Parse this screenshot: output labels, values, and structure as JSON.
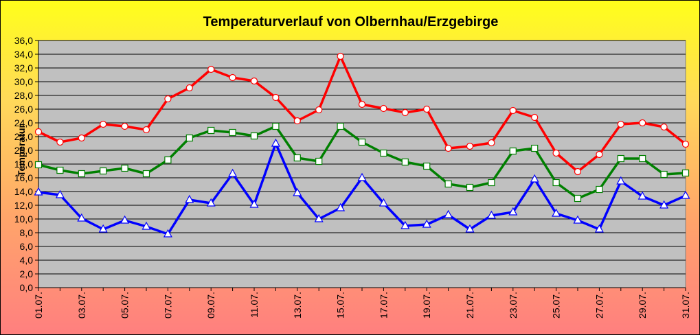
{
  "chart_data": {
    "type": "line",
    "title": "Temperaturverlauf von Olbernhau/Erzgebirge",
    "ylabel": "Temperatur",
    "xlabel": "",
    "ylim": [
      0,
      36
    ],
    "y_step": 2,
    "y_decimal_separator": ",",
    "grid": true,
    "legend": "none",
    "plot_background": "#c0c0c0",
    "categories": [
      "01.07.",
      "02.07.",
      "03.07.",
      "04.07.",
      "05.07.",
      "06.07.",
      "07.07.",
      "08.07.",
      "09.07.",
      "10.07.",
      "11.07.",
      "12.07.",
      "13.07.",
      "14.07.",
      "15.07.",
      "16.07.",
      "17.07.",
      "18.07.",
      "19.07.",
      "20.07.",
      "21.07.",
      "22.07.",
      "23.07.",
      "24.07.",
      "25.07.",
      "26.07.",
      "27.07.",
      "28.07.",
      "29.07.",
      "30.07.",
      "31.07."
    ],
    "x_tick_labels": [
      "01.07.",
      "03.07.",
      "05.07.",
      "07.07.",
      "09.07.",
      "11.07.",
      "13.07.",
      "15.07.",
      "17.07.",
      "19.07.",
      "21.07.",
      "23.07.",
      "25.07.",
      "27.07.",
      "29.07.",
      "31.07."
    ],
    "series": [
      {
        "color": "#ff0000",
        "marker": "circle",
        "values": [
          22.7,
          21.2,
          21.8,
          23.8,
          23.5,
          23.0,
          27.5,
          29.1,
          31.8,
          30.6,
          30.1,
          27.7,
          24.3,
          25.9,
          33.7,
          26.7,
          26.1,
          25.5,
          26.0,
          20.3,
          20.6,
          21.1,
          25.8,
          24.8,
          19.6,
          16.9,
          19.4,
          23.8,
          24.0,
          23.4,
          20.9
        ]
      },
      {
        "color": "#008000",
        "marker": "square",
        "values": [
          17.9,
          17.1,
          16.6,
          17.0,
          17.4,
          16.6,
          18.6,
          21.8,
          22.9,
          22.6,
          22.1,
          23.5,
          18.9,
          18.4,
          23.5,
          21.2,
          19.6,
          18.3,
          17.7,
          15.1,
          14.6,
          15.3,
          19.9,
          20.3,
          15.3,
          13.0,
          14.3,
          18.8,
          18.8,
          16.5,
          16.7
        ]
      },
      {
        "color": "#0000ff",
        "marker": "triangle",
        "values": [
          13.9,
          13.5,
          10.1,
          8.5,
          9.8,
          8.9,
          7.8,
          12.8,
          12.3,
          16.6,
          12.1,
          21.0,
          13.8,
          10.0,
          11.6,
          16.0,
          12.3,
          9.0,
          9.2,
          10.6,
          8.5,
          10.5,
          11.0,
          15.8,
          10.8,
          9.8,
          8.5,
          15.5,
          13.3,
          12.0,
          13.4
        ]
      }
    ]
  }
}
